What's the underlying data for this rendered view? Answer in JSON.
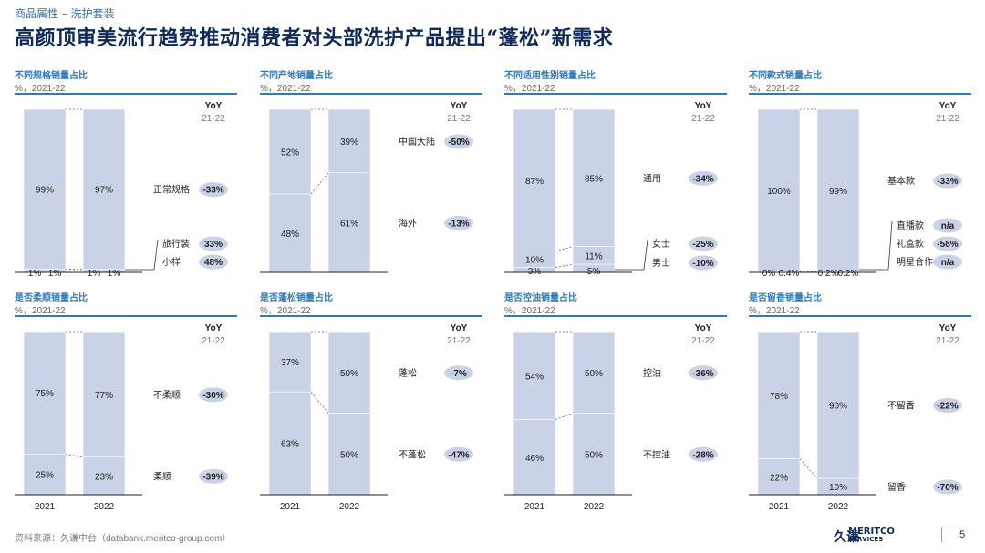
{
  "header": {
    "breadcrumb": "商品属性 – 洗护套装",
    "title": "高颜顶审美流行趋势推动消费者对头部洗护产品提出“蓬松”新需求"
  },
  "footer": {
    "source": "资料来源：久谦中台（databank.meritco-group.com）",
    "brand_cn": "久谦",
    "brand_en": "MERITCO",
    "brand_en_sub": "SERVICES",
    "page_number": "5"
  },
  "chart_data": [
    {
      "type": "bar",
      "title": "不同规格销量占比",
      "unit": "%，2021-22",
      "yoy_header": "YoY",
      "yoy_sub": "21-22",
      "categories": [
        "2021",
        "2022"
      ],
      "show_x_labels": false,
      "series": [
        {
          "name": "正常规格",
          "values": [
            99,
            97
          ],
          "labels": [
            "99%",
            "97%"
          ],
          "yoy": "-33%"
        },
        {
          "name": "旅行装",
          "values": [
            1,
            1
          ],
          "labels": [
            "1%",
            "1%"
          ],
          "yoy": "33%"
        },
        {
          "name": "小样",
          "values": [
            1,
            1
          ],
          "labels": [
            "1%",
            "1%"
          ],
          "yoy": "48%"
        }
      ]
    },
    {
      "type": "bar",
      "title": "不同产地销量占比",
      "unit": "%，2021-22",
      "yoy_header": "YoY",
      "yoy_sub": "21-22",
      "categories": [
        "2021",
        "2022"
      ],
      "show_x_labels": false,
      "series": [
        {
          "name": "中国大陆",
          "values": [
            52,
            39
          ],
          "labels": [
            "52%",
            "39%"
          ],
          "yoy": "-50%"
        },
        {
          "name": "海外",
          "values": [
            48,
            61
          ],
          "labels": [
            "48%",
            "61%"
          ],
          "yoy": "-13%"
        }
      ]
    },
    {
      "type": "bar",
      "title": "不同适用性别销量占比",
      "unit": "%，2021-22",
      "yoy_header": "YoY",
      "yoy_sub": "21-22",
      "categories": [
        "2021",
        "2022"
      ],
      "show_x_labels": false,
      "series": [
        {
          "name": "通用",
          "values": [
            87,
            85
          ],
          "labels": [
            "87%",
            "85%"
          ],
          "yoy": "-34%"
        },
        {
          "name": "女士",
          "values": [
            10,
            11
          ],
          "labels": [
            "10%",
            "11%"
          ],
          "yoy": "-25%"
        },
        {
          "name": "男士",
          "values": [
            3,
            5
          ],
          "labels": [
            "3%",
            "5%"
          ],
          "yoy": "-10%"
        }
      ]
    },
    {
      "type": "bar",
      "title": "不同款式销量占比",
      "unit": "%，2021-22",
      "yoy_header": "YoY",
      "yoy_sub": "21-22",
      "categories": [
        "2021",
        "2022"
      ],
      "show_x_labels": false,
      "series": [
        {
          "name": "基本款",
          "values": [
            100,
            99
          ],
          "labels": [
            "100%",
            "99%"
          ],
          "yoy": "-33%"
        },
        {
          "name": "直播款",
          "values": [
            0,
            0.2
          ],
          "labels": [
            "0%",
            "0.2%"
          ],
          "yoy": "n/a"
        },
        {
          "name": "礼盒款",
          "values": [
            0.4,
            0.2
          ],
          "labels": [
            "0.4%",
            "0.2%"
          ],
          "yoy": "-58%"
        },
        {
          "name": "明星合作",
          "values": [
            0,
            0
          ],
          "labels": [
            "",
            ""
          ],
          "yoy": "n/a"
        }
      ]
    },
    {
      "type": "bar",
      "title": "是否柔顺销量占比",
      "unit": "%，2021-22",
      "yoy_header": "YoY",
      "yoy_sub": "21-22",
      "categories": [
        "2021",
        "2022"
      ],
      "show_x_labels": true,
      "series": [
        {
          "name": "不柔顺",
          "values": [
            75,
            77
          ],
          "labels": [
            "75%",
            "77%"
          ],
          "yoy": "-30%"
        },
        {
          "name": "柔顺",
          "values": [
            25,
            23
          ],
          "labels": [
            "25%",
            "23%"
          ],
          "yoy": "-39%"
        }
      ]
    },
    {
      "type": "bar",
      "title": "是否蓬松销量占比",
      "unit": "%，2021-22",
      "yoy_header": "YoY",
      "yoy_sub": "21-22",
      "categories": [
        "2021",
        "2022"
      ],
      "show_x_labels": true,
      "series": [
        {
          "name": "蓬松",
          "values": [
            37,
            50
          ],
          "labels": [
            "37%",
            "50%"
          ],
          "yoy": "-7%"
        },
        {
          "name": "不蓬松",
          "values": [
            63,
            50
          ],
          "labels": [
            "63%",
            "50%"
          ],
          "yoy": "-47%"
        }
      ]
    },
    {
      "type": "bar",
      "title": "是否控油销量占比",
      "unit": "%，2021-22",
      "yoy_header": "YoY",
      "yoy_sub": "21-22",
      "categories": [
        "2021",
        "2022"
      ],
      "show_x_labels": true,
      "series": [
        {
          "name": "控油",
          "values": [
            54,
            50
          ],
          "labels": [
            "54%",
            "50%"
          ],
          "yoy": "-36%"
        },
        {
          "name": "不控油",
          "values": [
            46,
            50
          ],
          "labels": [
            "46%",
            "50%"
          ],
          "yoy": "-28%"
        }
      ]
    },
    {
      "type": "bar",
      "title": "是否留香销量占比",
      "unit": "%，2021-22",
      "yoy_header": "YoY",
      "yoy_sub": "21-22",
      "categories": [
        "2021",
        "2022"
      ],
      "show_x_labels": true,
      "series": [
        {
          "name": "不留香",
          "values": [
            78,
            90
          ],
          "labels": [
            "78%",
            "90%"
          ],
          "yoy": "-22%"
        },
        {
          "name": "留香",
          "values": [
            22,
            10
          ],
          "labels": [
            "22%",
            "10%"
          ],
          "yoy": "-70%"
        }
      ]
    }
  ]
}
